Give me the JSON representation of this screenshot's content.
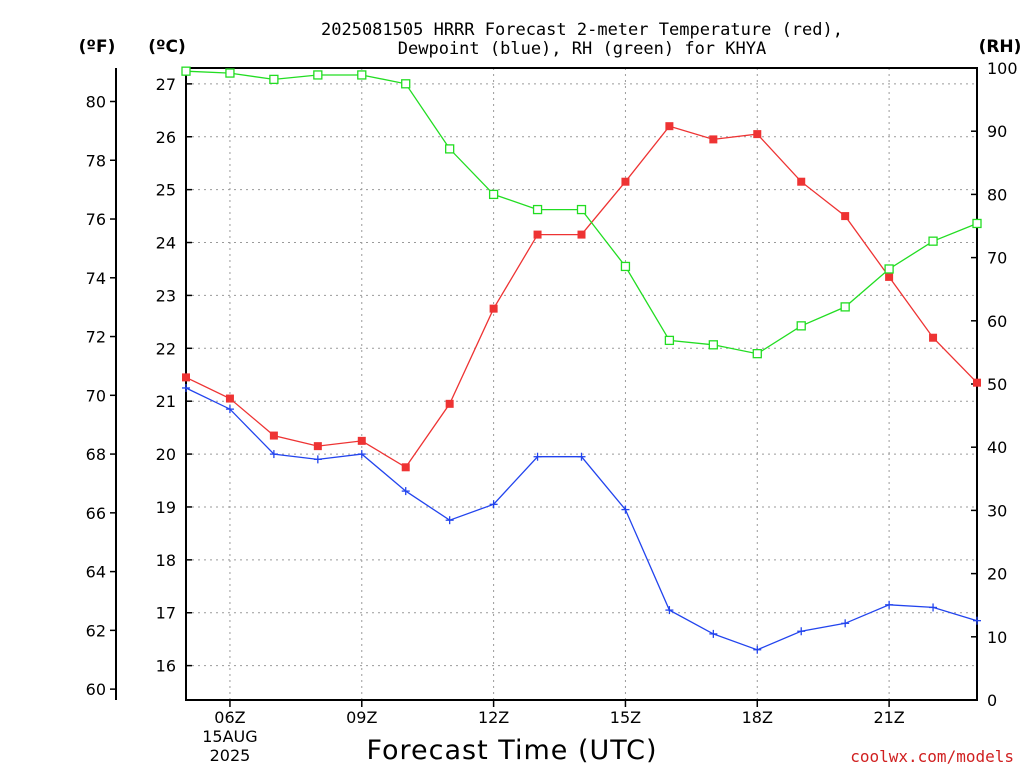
{
  "chart_data": {
    "type": "line",
    "title": "2025081505 HRRR Forecast 2-meter Temperature (red),",
    "subtitle": "Dewpoint (blue), RH (green) for KHYA",
    "xlabel": "Forecast Time (UTC)",
    "credit": "coolwx.com/models",
    "units": {
      "fahrenheit": "(ºF)",
      "celsius": "(ºC)",
      "rh": "(RH)"
    },
    "x_hours": [
      5,
      6,
      7,
      8,
      9,
      10,
      11,
      12,
      13,
      14,
      15,
      16,
      17,
      18,
      19,
      20,
      21,
      22,
      23
    ],
    "xlim": [
      5,
      23
    ],
    "x_ticks": [
      {
        "hour": 6,
        "label": "06Z",
        "date": "15AUG",
        "year": "2025"
      },
      {
        "hour": 9,
        "label": "09Z"
      },
      {
        "hour": 12,
        "label": "12Z"
      },
      {
        "hour": 15,
        "label": "15Z"
      },
      {
        "hour": 18,
        "label": "18Z"
      },
      {
        "hour": 21,
        "label": "21Z"
      }
    ],
    "celsius_axis": {
      "ylim": [
        15.35,
        27.3
      ],
      "ticks": [
        16,
        17,
        18,
        19,
        20,
        21,
        22,
        23,
        24,
        25,
        26,
        27
      ]
    },
    "fahrenheit_axis": {
      "ticks": [
        60,
        62,
        64,
        66,
        68,
        70,
        72,
        74,
        76,
        78,
        80
      ]
    },
    "rh_axis": {
      "ylim": [
        0,
        100
      ],
      "ticks": [
        0,
        10,
        20,
        30,
        40,
        50,
        60,
        70,
        80,
        90,
        100
      ]
    },
    "grid": true,
    "series": [
      {
        "name": "Temperature",
        "axis": "celsius",
        "color": "#ee3333",
        "marker": "filled-square",
        "values": [
          21.45,
          21.05,
          20.35,
          20.15,
          20.25,
          19.75,
          20.95,
          22.75,
          24.15,
          24.15,
          25.15,
          26.2,
          25.95,
          26.05,
          25.15,
          24.5,
          23.35,
          22.2,
          21.35
        ]
      },
      {
        "name": "Dewpoint",
        "axis": "celsius",
        "color": "#2244ee",
        "marker": "plus",
        "values": [
          21.25,
          20.85,
          20.0,
          19.9,
          20.0,
          19.3,
          18.75,
          19.05,
          19.95,
          19.95,
          18.95,
          17.05,
          16.6,
          16.3,
          16.65,
          16.8,
          17.15,
          17.1,
          16.85
        ]
      },
      {
        "name": "RH",
        "axis": "rh",
        "color": "#22dd22",
        "marker": "open-square",
        "values": [
          99.5,
          99.2,
          98.2,
          98.9,
          98.9,
          97.5,
          87.2,
          80.0,
          77.6,
          77.6,
          68.6,
          56.9,
          56.2,
          54.8,
          59.2,
          62.2,
          68.2,
          72.6,
          75.4
        ]
      }
    ]
  }
}
